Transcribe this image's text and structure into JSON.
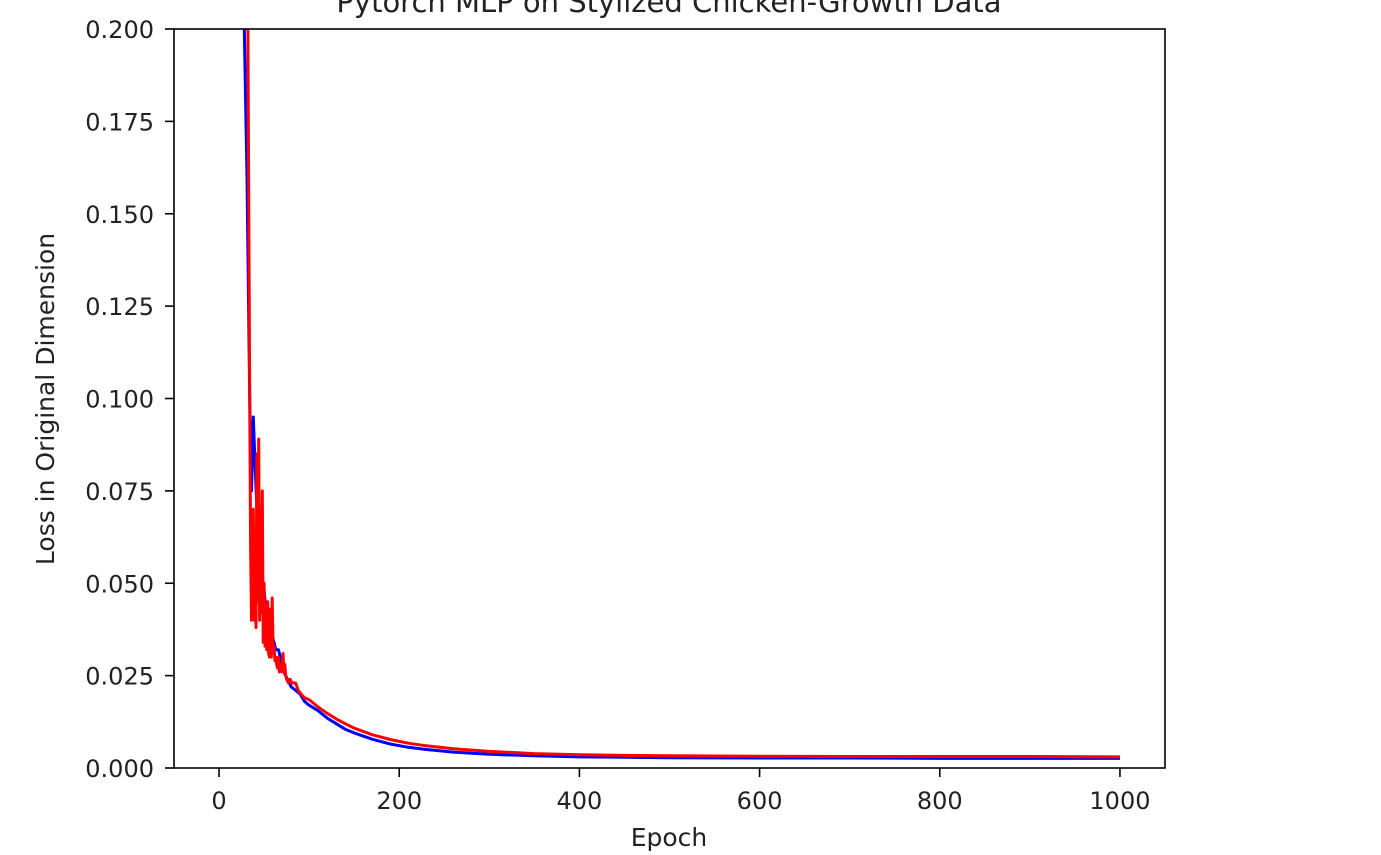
{
  "chart_data": {
    "type": "line",
    "title": "Pytorch MLP on Stylized Chicken-Growth Data",
    "xlabel": "Epoch",
    "ylabel": "Loss in Original Dimension",
    "xlim": [
      -50,
      1050
    ],
    "ylim": [
      0,
      0.2
    ],
    "xticks": [
      0,
      200,
      400,
      600,
      800,
      1000
    ],
    "yticks": [
      0.0,
      0.025,
      0.05,
      0.075,
      0.1,
      0.125,
      0.15,
      0.175,
      0.2
    ],
    "xtick_labels": [
      "0",
      "200",
      "400",
      "600",
      "800",
      "1000"
    ],
    "ytick_labels": [
      "0.000",
      "0.025",
      "0.050",
      "0.075",
      "0.100",
      "0.125",
      "0.150",
      "0.175",
      "0.200"
    ],
    "grid": false,
    "legend": "none",
    "series": [
      {
        "color": "#0000ff",
        "x": [
          28,
          31,
          34,
          36,
          38,
          40,
          42,
          44,
          46,
          48,
          50,
          52,
          54,
          56,
          58,
          60,
          63,
          66,
          69,
          72,
          76,
          80,
          85,
          90,
          95,
          100,
          110,
          120,
          130,
          140,
          150,
          170,
          190,
          210,
          230,
          260,
          300,
          350,
          400,
          450,
          500,
          600,
          700,
          800,
          900,
          1000
        ],
        "y": [
          0.2,
          0.16,
          0.1,
          0.075,
          0.095,
          0.082,
          0.07,
          0.058,
          0.052,
          0.045,
          0.048,
          0.043,
          0.04,
          0.037,
          0.038,
          0.035,
          0.032,
          0.032,
          0.029,
          0.026,
          0.024,
          0.022,
          0.021,
          0.02,
          0.018,
          0.017,
          0.0155,
          0.0135,
          0.012,
          0.0105,
          0.0095,
          0.0078,
          0.0065,
          0.0056,
          0.005,
          0.0043,
          0.0037,
          0.0033,
          0.003,
          0.0029,
          0.0028,
          0.0027,
          0.0027,
          0.0026,
          0.0026,
          0.0026
        ]
      },
      {
        "color": "#ff0000",
        "x": [
          32,
          33,
          34,
          35,
          36,
          38,
          39,
          40,
          41,
          42,
          43,
          44,
          45,
          46,
          47,
          48,
          49,
          50,
          51,
          52,
          53,
          54,
          55,
          56,
          57,
          58,
          59,
          60,
          61,
          62,
          63,
          64,
          65,
          66,
          67,
          68,
          69,
          70,
          71,
          72,
          73,
          74,
          75,
          77,
          79,
          81,
          83,
          85,
          88,
          91,
          95,
          100,
          110,
          120,
          130,
          140,
          150,
          170,
          190,
          210,
          230,
          260,
          300,
          350,
          400,
          450,
          500,
          600,
          700,
          800,
          900,
          1000
        ],
        "y": [
          0.2,
          0.15,
          0.1,
          0.06,
          0.04,
          0.07,
          0.04,
          0.06,
          0.038,
          0.085,
          0.045,
          0.089,
          0.04,
          0.07,
          0.042,
          0.075,
          0.034,
          0.05,
          0.033,
          0.044,
          0.032,
          0.045,
          0.031,
          0.03,
          0.043,
          0.03,
          0.046,
          0.032,
          0.033,
          0.029,
          0.03,
          0.028,
          0.027,
          0.03,
          0.026,
          0.028,
          0.027,
          0.026,
          0.031,
          0.026,
          0.028,
          0.025,
          0.024,
          0.023,
          0.024,
          0.023,
          0.023,
          0.023,
          0.021,
          0.02,
          0.019,
          0.0185,
          0.0165,
          0.0148,
          0.0133,
          0.012,
          0.0108,
          0.009,
          0.0077,
          0.0067,
          0.006,
          0.0052,
          0.0045,
          0.0039,
          0.0036,
          0.0034,
          0.0033,
          0.0032,
          0.0031,
          0.0031,
          0.0031,
          0.003
        ]
      }
    ]
  }
}
